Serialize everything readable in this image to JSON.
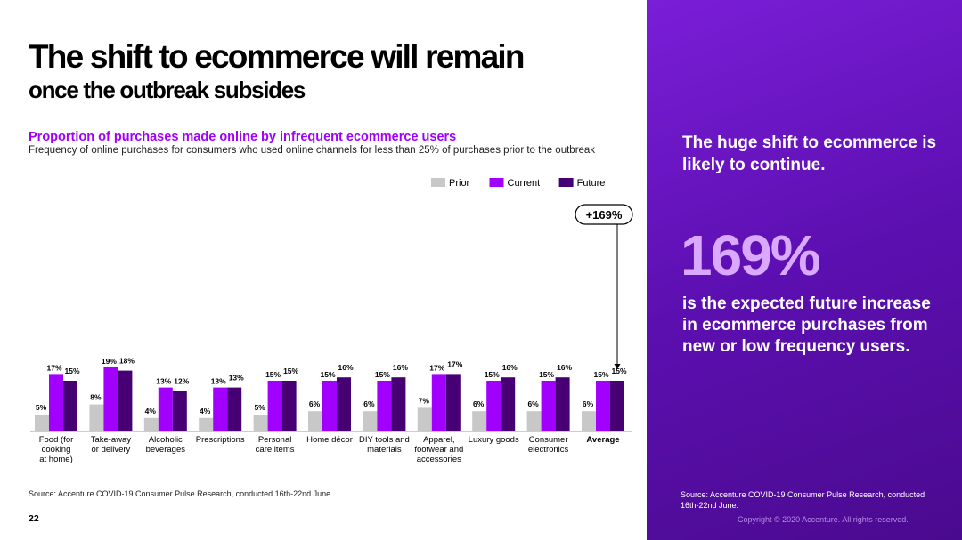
{
  "slide": {
    "title_line1": "The shift to ecommerce will remain",
    "title_line2": "once the outbreak subsides",
    "subtitle": "Proportion of purchases made online by infrequent ecommerce users",
    "description": "Frequency of online purchases for consumers who used online channels for less than 25% of purchases prior to the outbreak",
    "source": "Source: Accenture COVID-19 Consumer Pulse Research, conducted 16th-22nd June.",
    "page_number": "22"
  },
  "panel": {
    "headline": "The huge shift to ecommerce is likely to continue.",
    "big_number": "169%",
    "body": "is the expected future increase in ecommerce purchases from new or low frequency users.",
    "source": "Source: Accenture COVID-19 Consumer Pulse Research, conducted 16th-22nd June.",
    "copyright": "Copyright © 2020 Accenture. All rights reserved."
  },
  "chart_data": {
    "type": "bar",
    "categories": [
      "Food (for cooking at home)",
      "Take-away or delivery",
      "Alcoholic beverages",
      "Prescriptions",
      "Personal care items",
      "Home décor",
      "DIY tools and materials",
      "Apparel, footwear and accessories",
      "Luxury goods",
      "Consumer electronics",
      "Average"
    ],
    "category_lines": [
      [
        "Food (for",
        "cooking",
        "at home)"
      ],
      [
        "Take-away",
        "or delivery"
      ],
      [
        "Alcoholic",
        "beverages"
      ],
      [
        "Prescriptions"
      ],
      [
        "Personal",
        "care items"
      ],
      [
        "Home décor"
      ],
      [
        "DIY tools and",
        "materials"
      ],
      [
        "Apparel,",
        "footwear and",
        "accessories"
      ],
      [
        "Luxury goods"
      ],
      [
        "Consumer",
        "electronics"
      ],
      [
        "Average"
      ]
    ],
    "series": [
      {
        "name": "Prior",
        "color": "#c8c8c8",
        "values": [
          5,
          8,
          4,
          4,
          5,
          6,
          6,
          7,
          6,
          6,
          6
        ]
      },
      {
        "name": "Current",
        "color": "#a100ff",
        "values": [
          17,
          19,
          13,
          13,
          15,
          15,
          15,
          17,
          15,
          15,
          15
        ]
      },
      {
        "name": "Future",
        "color": "#460073",
        "values": [
          15,
          18,
          12,
          13,
          15,
          16,
          16,
          17,
          16,
          16,
          15
        ]
      }
    ],
    "value_suffix": "%",
    "ylim": [
      0,
      20
    ],
    "annotation": "+169%",
    "legend_position": "top-right",
    "grid": false
  }
}
